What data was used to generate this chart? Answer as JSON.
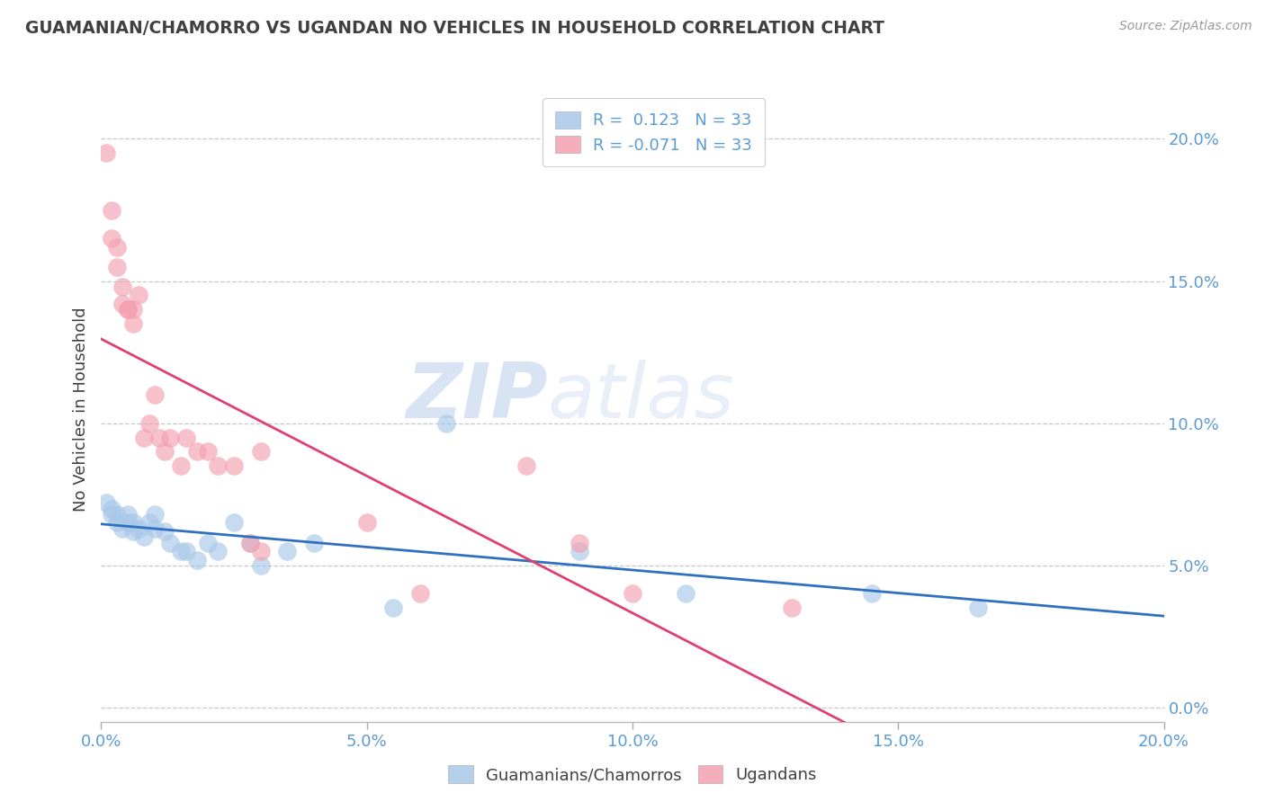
{
  "title": "GUAMANIAN/CHAMORRO VS UGANDAN NO VEHICLES IN HOUSEHOLD CORRELATION CHART",
  "source": "Source: ZipAtlas.com",
  "ylabel": "No Vehicles in Household",
  "xlim": [
    0.0,
    0.2
  ],
  "ylim": [
    -0.005,
    0.215
  ],
  "yticks": [
    0.0,
    0.05,
    0.1,
    0.15,
    0.2
  ],
  "xticks": [
    0.0,
    0.05,
    0.1,
    0.15,
    0.2
  ],
  "xtick_labels": [
    "0.0%",
    "5.0%",
    "10.0%",
    "15.0%",
    "20.0%"
  ],
  "ytick_labels": [
    "0.0%",
    "5.0%",
    "10.0%",
    "15.0%",
    "20.0%"
  ],
  "blue_color": "#a8c8e8",
  "pink_color": "#f4a0b0",
  "line_blue": "#3070c0",
  "line_pink": "#e04070",
  "watermark_zip": "ZIP",
  "watermark_atlas": "atlas",
  "blue_R": 0.123,
  "blue_N": 33,
  "pink_R": -0.071,
  "pink_N": 33,
  "blue_x": [
    0.001,
    0.002,
    0.002,
    0.003,
    0.003,
    0.004,
    0.005,
    0.005,
    0.006,
    0.006,
    0.007,
    0.008,
    0.009,
    0.01,
    0.01,
    0.012,
    0.013,
    0.015,
    0.016,
    0.018,
    0.02,
    0.022,
    0.025,
    0.028,
    0.03,
    0.035,
    0.04,
    0.055,
    0.065,
    0.09,
    0.11,
    0.145,
    0.165
  ],
  "blue_y": [
    0.072,
    0.07,
    0.068,
    0.068,
    0.065,
    0.063,
    0.065,
    0.068,
    0.062,
    0.065,
    0.063,
    0.06,
    0.065,
    0.068,
    0.063,
    0.062,
    0.058,
    0.055,
    0.055,
    0.052,
    0.058,
    0.055,
    0.065,
    0.058,
    0.05,
    0.055,
    0.058,
    0.035,
    0.1,
    0.055,
    0.04,
    0.04,
    0.035
  ],
  "pink_x": [
    0.001,
    0.002,
    0.002,
    0.003,
    0.003,
    0.004,
    0.004,
    0.005,
    0.005,
    0.006,
    0.006,
    0.007,
    0.008,
    0.009,
    0.01,
    0.011,
    0.012,
    0.013,
    0.015,
    0.016,
    0.018,
    0.02,
    0.022,
    0.025,
    0.028,
    0.03,
    0.03,
    0.05,
    0.06,
    0.08,
    0.09,
    0.1,
    0.13
  ],
  "pink_y": [
    0.195,
    0.175,
    0.165,
    0.162,
    0.155,
    0.148,
    0.142,
    0.14,
    0.14,
    0.135,
    0.14,
    0.145,
    0.095,
    0.1,
    0.11,
    0.095,
    0.09,
    0.095,
    0.085,
    0.095,
    0.09,
    0.09,
    0.085,
    0.085,
    0.058,
    0.09,
    0.055,
    0.065,
    0.04,
    0.085,
    0.058,
    0.04,
    0.035
  ],
  "title_color": "#404040",
  "axis_color": "#5b9bd5",
  "grid_color": "#c8c8c8",
  "background_color": "#ffffff"
}
